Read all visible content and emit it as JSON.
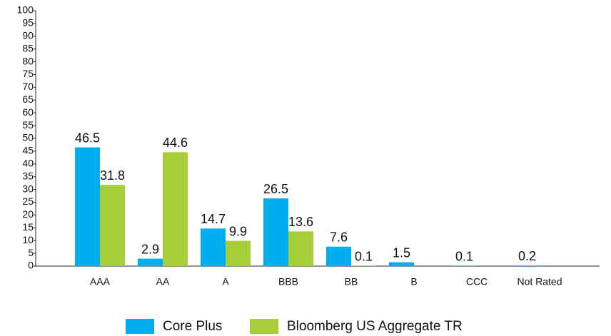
{
  "chart_data": {
    "type": "bar",
    "categories": [
      "AAA",
      "AA",
      "A",
      "BBB",
      "BB",
      "B",
      "CCC",
      "Not Rated"
    ],
    "series": [
      {
        "name": "Core Plus",
        "color": "#00adef",
        "values": [
          46.5,
          2.9,
          14.7,
          26.5,
          7.6,
          1.5,
          0.1,
          0.2
        ]
      },
      {
        "name": "Bloomberg US Aggregate TR",
        "color": "#a6ce39",
        "values": [
          31.8,
          44.6,
          9.9,
          13.6,
          0.1,
          null,
          null,
          null
        ]
      }
    ],
    "ylim": [
      0,
      100
    ],
    "yticks": [
      0,
      5,
      10,
      15,
      20,
      25,
      30,
      35,
      40,
      45,
      50,
      55,
      60,
      65,
      70,
      75,
      80,
      85,
      90,
      95,
      100
    ],
    "grid": false,
    "legend": "bottom"
  }
}
